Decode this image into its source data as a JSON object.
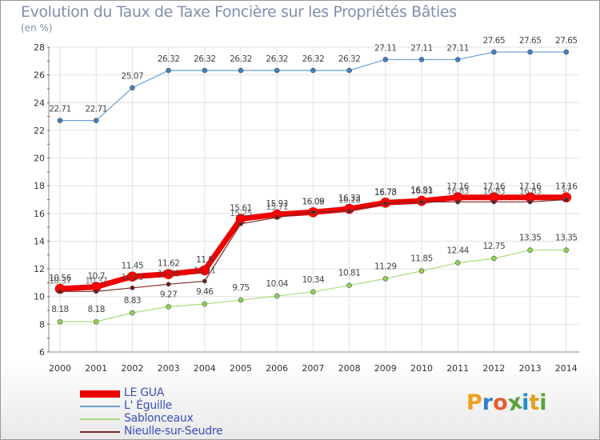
{
  "title": "Evolution du Taux de Taxe Foncière sur les Propriétés Bâties",
  "unit": "(en %)",
  "logo": {
    "letters": [
      "P",
      "r",
      "o",
      "x",
      "i",
      "t",
      "i"
    ],
    "colors": [
      "#f0a020",
      "#2f7fd0",
      "#e06030",
      "#5aa23a",
      "#1f8fd6",
      "#e0a020",
      "#5aa23a"
    ]
  },
  "chart_data": {
    "type": "line",
    "title": "Evolution du Taux de Taxe Foncière sur les Propriétés Bâties",
    "ylabel": "(en %)",
    "xlabel": "",
    "ylim": [
      6,
      28
    ],
    "yticks": [
      6,
      8,
      10,
      12,
      14,
      16,
      18,
      20,
      22,
      24,
      26,
      28
    ],
    "categories": [
      "2000",
      "2001",
      "2002",
      "2003",
      "2004",
      "2005",
      "2006",
      "2007",
      "2008",
      "2009",
      "2010",
      "2011",
      "2012",
      "2013",
      "2014"
    ],
    "grid": true,
    "legend_position": "bottom-left",
    "series": [
      {
        "name": "LE GUA",
        "color": "#ff0000",
        "values": [
          10.56,
          10.7,
          11.45,
          11.62,
          11.9,
          15.61,
          15.93,
          16.09,
          16.33,
          16.78,
          16.91,
          17.16,
          17.16,
          17.16,
          17.16
        ],
        "labels": [
          "10.56",
          "10.7",
          "11.45",
          "11.62",
          "11.9",
          "15.61",
          "15.93",
          "16.09",
          "16.33",
          "16.78",
          "16.91",
          "17.16",
          "17.16",
          "17.16",
          "17.16"
        ]
      },
      {
        "name": "L' Éguille",
        "color": "#6a9fd4",
        "values": [
          22.71,
          22.71,
          25.07,
          26.32,
          26.32,
          26.32,
          26.32,
          26.32,
          26.32,
          27.11,
          27.11,
          27.11,
          27.65,
          27.65,
          27.65
        ],
        "labels": [
          "22.71",
          "22.71",
          "25.07",
          "26.32",
          "26.32",
          "26.32",
          "26.32",
          "26.32",
          "26.32",
          "27.11",
          "27.11",
          "27.11",
          "27.65",
          "27.65",
          "27.65"
        ]
      },
      {
        "name": "Sablonceaux",
        "color": "#a8dc80",
        "values": [
          8.18,
          8.18,
          8.83,
          9.27,
          9.46,
          9.75,
          10.04,
          10.34,
          10.81,
          11.29,
          11.85,
          12.44,
          12.75,
          13.35,
          13.35
        ],
        "labels": [
          "8.18",
          "8.18",
          "8.83",
          "9.27",
          "9.46",
          "9.75",
          "10.04",
          "10.34",
          "10.81",
          "11.29",
          "11.85",
          "12.44",
          "12.75",
          "13.35",
          "13.35"
        ]
      },
      {
        "name": "Nieulle-sur-Seudre",
        "color": "#7a2a2a",
        "values": [
          10.37,
          10.37,
          10.63,
          10.89,
          11.11,
          15.25,
          15.71,
          16.08,
          16.18,
          16.73,
          16.83,
          16.83,
          16.83,
          16.83,
          17.0
        ],
        "labels": [
          "10.37",
          "10.37",
          "10.63",
          "10.89",
          "11.11",
          "15.25",
          "15.71",
          "16.08",
          "16.18",
          "16.73",
          "16.83",
          "16.83",
          "16.83",
          "16.83",
          "17"
        ]
      }
    ]
  }
}
